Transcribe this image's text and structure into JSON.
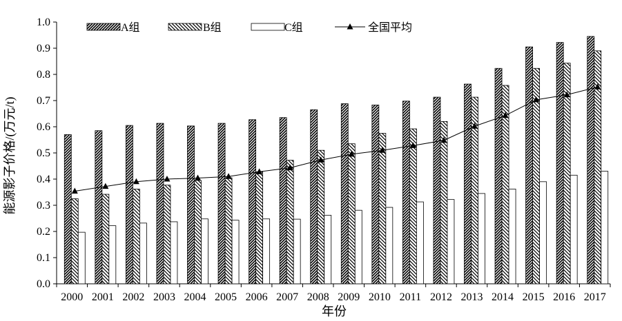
{
  "chart_data": {
    "type": "bar",
    "title": "",
    "xlabel": "年份",
    "ylabel": "能源影子价格/(万元/t)",
    "ylim": [
      0,
      1.0
    ],
    "yticks": [
      "0.0",
      "0.1",
      "0.2",
      "0.3",
      "0.4",
      "0.5",
      "0.6",
      "0.7",
      "0.8",
      "0.9",
      "1.0"
    ],
    "grid": false,
    "legend_position": "top",
    "categories": [
      "2000",
      "2001",
      "2002",
      "2003",
      "2004",
      "2005",
      "2006",
      "2007",
      "2008",
      "2009",
      "2010",
      "2011",
      "2012",
      "2013",
      "2014",
      "2015",
      "2016",
      "2017"
    ],
    "series": [
      {
        "name": "A组",
        "type": "bar",
        "pattern": "dense-hatch",
        "values": [
          0.57,
          0.585,
          0.605,
          0.613,
          0.603,
          0.613,
          0.627,
          0.635,
          0.665,
          0.688,
          0.683,
          0.698,
          0.713,
          0.763,
          0.823,
          0.905,
          0.922,
          0.945
        ]
      },
      {
        "name": "B组",
        "type": "bar",
        "pattern": "sparse-hatch",
        "values": [
          0.325,
          0.342,
          0.362,
          0.377,
          0.395,
          0.405,
          0.428,
          0.472,
          0.51,
          0.535,
          0.575,
          0.592,
          0.62,
          0.713,
          0.758,
          0.823,
          0.843,
          0.89
        ]
      },
      {
        "name": "C组",
        "type": "bar",
        "pattern": "white",
        "values": [
          0.197,
          0.222,
          0.232,
          0.237,
          0.248,
          0.243,
          0.248,
          0.247,
          0.262,
          0.281,
          0.292,
          0.313,
          0.322,
          0.345,
          0.362,
          0.39,
          0.415,
          0.43
        ]
      },
      {
        "name": "全国平均",
        "type": "line",
        "marker": "triangle",
        "values": [
          0.354,
          0.372,
          0.39,
          0.4,
          0.404,
          0.41,
          0.428,
          0.443,
          0.473,
          0.495,
          0.51,
          0.528,
          0.548,
          0.602,
          0.643,
          0.703,
          0.722,
          0.752
        ]
      }
    ]
  }
}
